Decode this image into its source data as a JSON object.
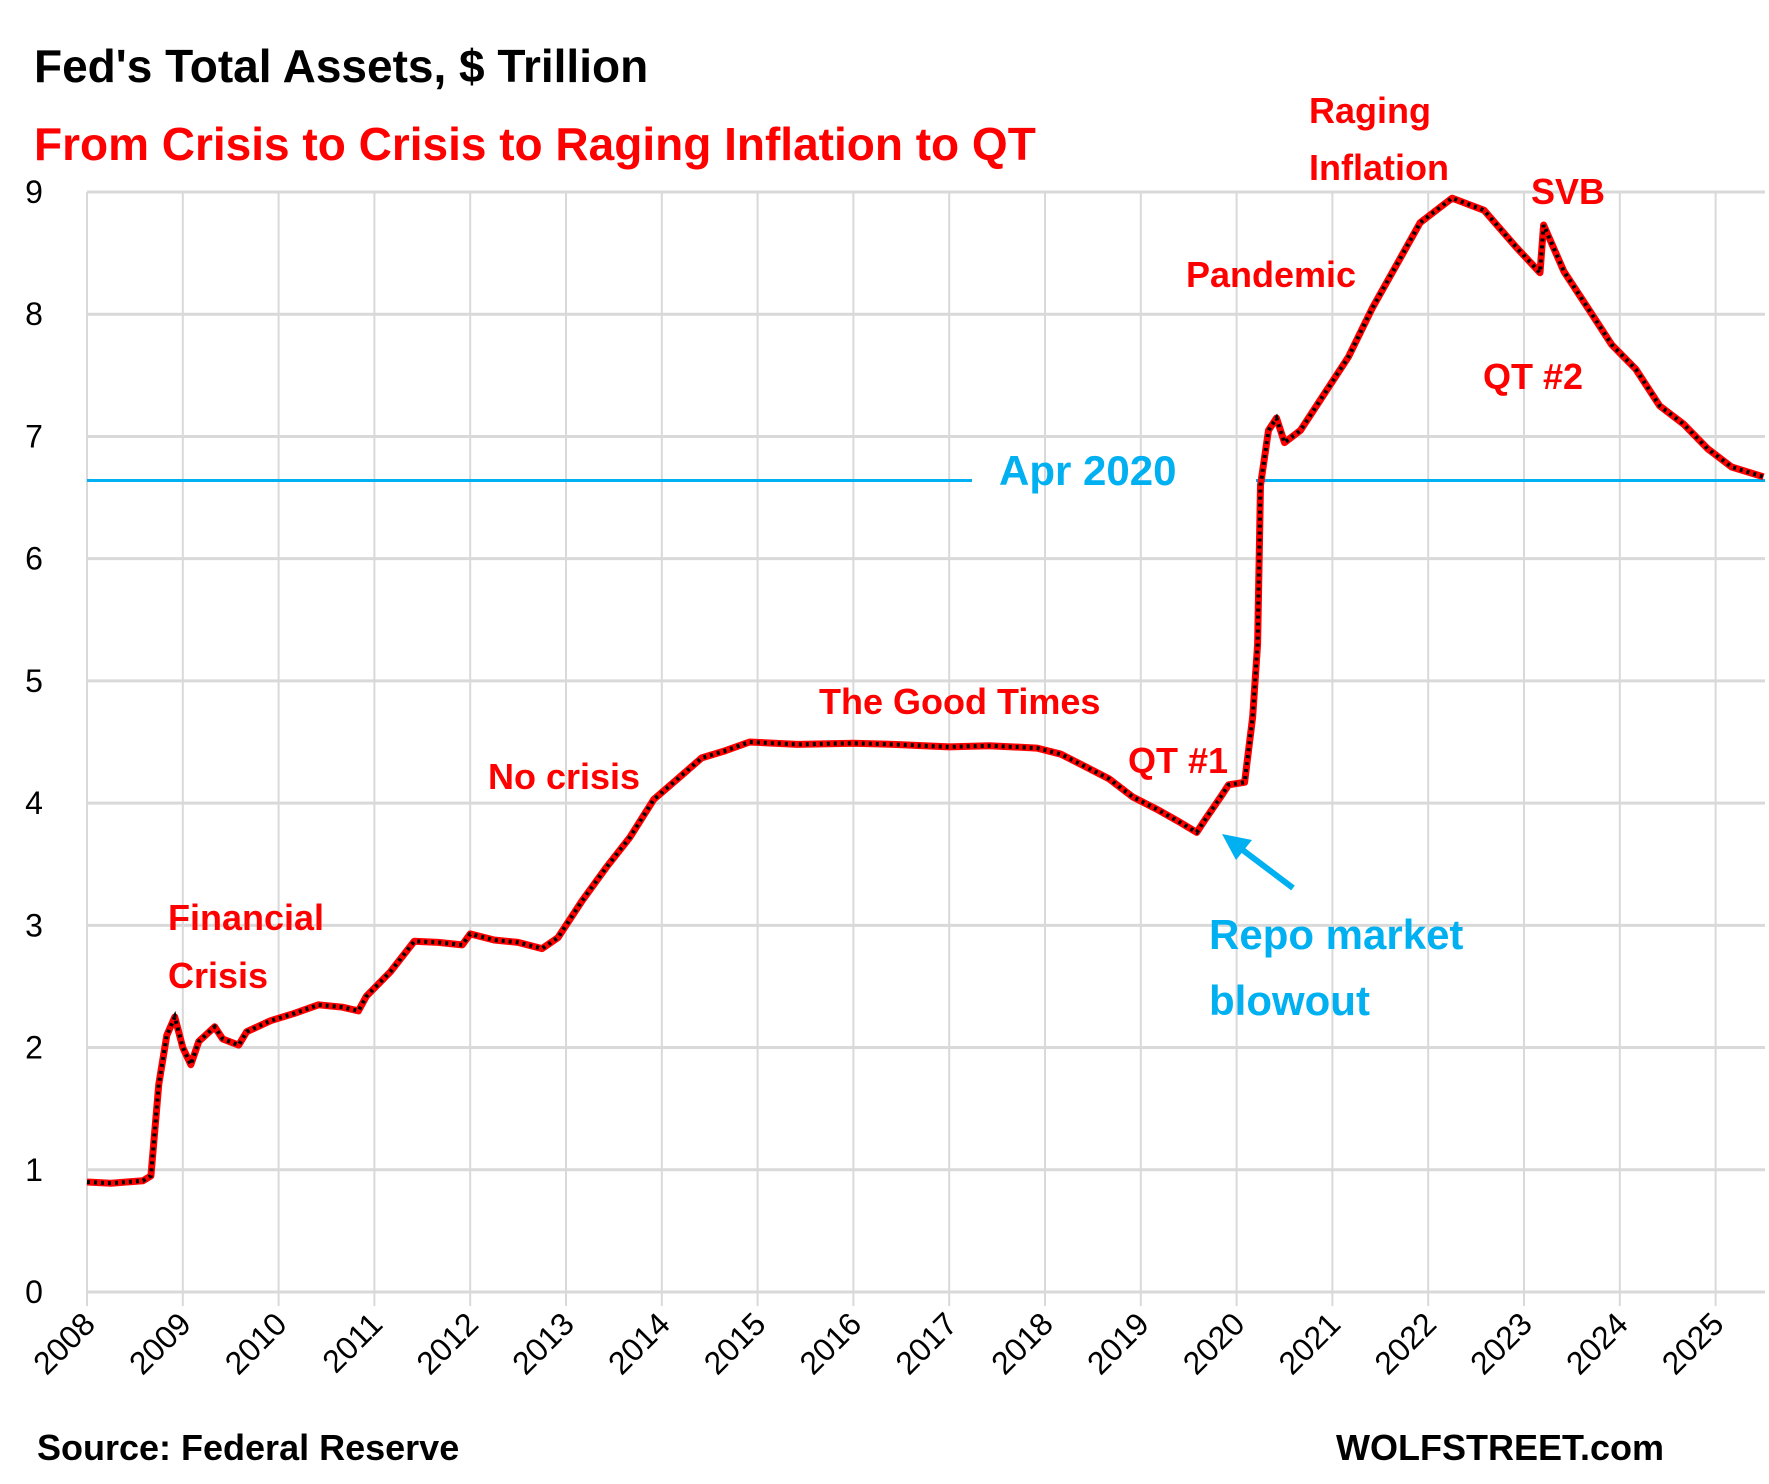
{
  "chart_data": {
    "type": "line",
    "title": "Fed's Total Assets, $ Trillion",
    "subtitle": "From Crisis to Crisis to Raging Inflation to QT",
    "xlabel": "",
    "ylabel": "",
    "ylim": [
      0,
      9
    ],
    "xlim": [
      "2008-01",
      "2025-07"
    ],
    "y_ticks": [
      "0",
      "1",
      "2",
      "3",
      "4",
      "5",
      "6",
      "7",
      "8",
      "9"
    ],
    "x_ticks": [
      "2008",
      "2009",
      "2010",
      "2011",
      "2012",
      "2013",
      "2014",
      "2015",
      "2016",
      "2017",
      "2018",
      "2019",
      "2020",
      "2021",
      "2022",
      "2023",
      "2024",
      "2025"
    ],
    "grid": true,
    "colors": {
      "line": "#FF0000",
      "markers": "#000000",
      "reference": "#00B0F0",
      "annotation": "#FF0000",
      "grid": "#D9D9D9"
    },
    "series": [
      {
        "points": [
          [
            "2008-01",
            0.9
          ],
          [
            "2008-04",
            0.89
          ],
          [
            "2008-08",
            0.91
          ],
          [
            "2008-09",
            0.95
          ],
          [
            "2008-10",
            1.7
          ],
          [
            "2008-11",
            2.1
          ],
          [
            "2008-12",
            2.25
          ],
          [
            "2009-01",
            2.0
          ],
          [
            "2009-02",
            1.86
          ],
          [
            "2009-03",
            2.05
          ],
          [
            "2009-05",
            2.17
          ],
          [
            "2009-06",
            2.07
          ],
          [
            "2009-08",
            2.02
          ],
          [
            "2009-09",
            2.13
          ],
          [
            "2009-12",
            2.22
          ],
          [
            "2010-03",
            2.28
          ],
          [
            "2010-06",
            2.35
          ],
          [
            "2010-09",
            2.33
          ],
          [
            "2010-11",
            2.3
          ],
          [
            "2010-12",
            2.42
          ],
          [
            "2011-03",
            2.62
          ],
          [
            "2011-06",
            2.87
          ],
          [
            "2011-09",
            2.86
          ],
          [
            "2011-12",
            2.84
          ],
          [
            "2012-01",
            2.93
          ],
          [
            "2012-04",
            2.88
          ],
          [
            "2012-07",
            2.86
          ],
          [
            "2012-10",
            2.81
          ],
          [
            "2012-12",
            2.9
          ],
          [
            "2013-03",
            3.2
          ],
          [
            "2013-06",
            3.47
          ],
          [
            "2013-09",
            3.72
          ],
          [
            "2013-12",
            4.03
          ],
          [
            "2014-03",
            4.2
          ],
          [
            "2014-06",
            4.37
          ],
          [
            "2014-09",
            4.43
          ],
          [
            "2014-12",
            4.5
          ],
          [
            "2015-06",
            4.48
          ],
          [
            "2016-01",
            4.49
          ],
          [
            "2016-06",
            4.48
          ],
          [
            "2017-01",
            4.46
          ],
          [
            "2017-06",
            4.47
          ],
          [
            "2017-12",
            4.45
          ],
          [
            "2018-03",
            4.4
          ],
          [
            "2018-06",
            4.3
          ],
          [
            "2018-09",
            4.2
          ],
          [
            "2018-12",
            4.05
          ],
          [
            "2019-03",
            3.95
          ],
          [
            "2019-06",
            3.84
          ],
          [
            "2019-08",
            3.76
          ],
          [
            "2019-09",
            3.86
          ],
          [
            "2019-11",
            4.05
          ],
          [
            "2019-12",
            4.15
          ],
          [
            "2020-02",
            4.17
          ],
          [
            "2020-03",
            4.7
          ],
          [
            "2020-03-20",
            5.3
          ],
          [
            "2020-04",
            6.6
          ],
          [
            "2020-05",
            7.05
          ],
          [
            "2020-06",
            7.15
          ],
          [
            "2020-07",
            6.95
          ],
          [
            "2020-09",
            7.05
          ],
          [
            "2020-12",
            7.35
          ],
          [
            "2021-03",
            7.65
          ],
          [
            "2021-06",
            8.05
          ],
          [
            "2021-09",
            8.4
          ],
          [
            "2021-12",
            8.75
          ],
          [
            "2022-04",
            8.95
          ],
          [
            "2022-08",
            8.85
          ],
          [
            "2022-12",
            8.55
          ],
          [
            "2023-03",
            8.34
          ],
          [
            "2023-03-15",
            8.73
          ],
          [
            "2023-06",
            8.35
          ],
          [
            "2023-09",
            8.05
          ],
          [
            "2023-12",
            7.75
          ],
          [
            "2024-03",
            7.55
          ],
          [
            "2024-06",
            7.25
          ],
          [
            "2024-09",
            7.1
          ],
          [
            "2024-12",
            6.9
          ],
          [
            "2025-03",
            6.75
          ],
          [
            "2025-07",
            6.67
          ]
        ]
      }
    ],
    "reference_line": {
      "value": 6.64,
      "label": "Apr 2020"
    },
    "annotations": {
      "financial_crisis": [
        "Financial",
        "Crisis"
      ],
      "no_crisis": "No crisis",
      "good_times": "The Good Times",
      "qt1": "QT #1",
      "pandemic": "Pandemic",
      "raging_inflation": [
        "Raging",
        "Inflation"
      ],
      "svb": "SVB",
      "qt2": "QT #2",
      "repo": [
        "Repo market",
        "blowout"
      ]
    },
    "source": "Source: Federal Reserve",
    "brand": "WOLFSTREET.com"
  }
}
